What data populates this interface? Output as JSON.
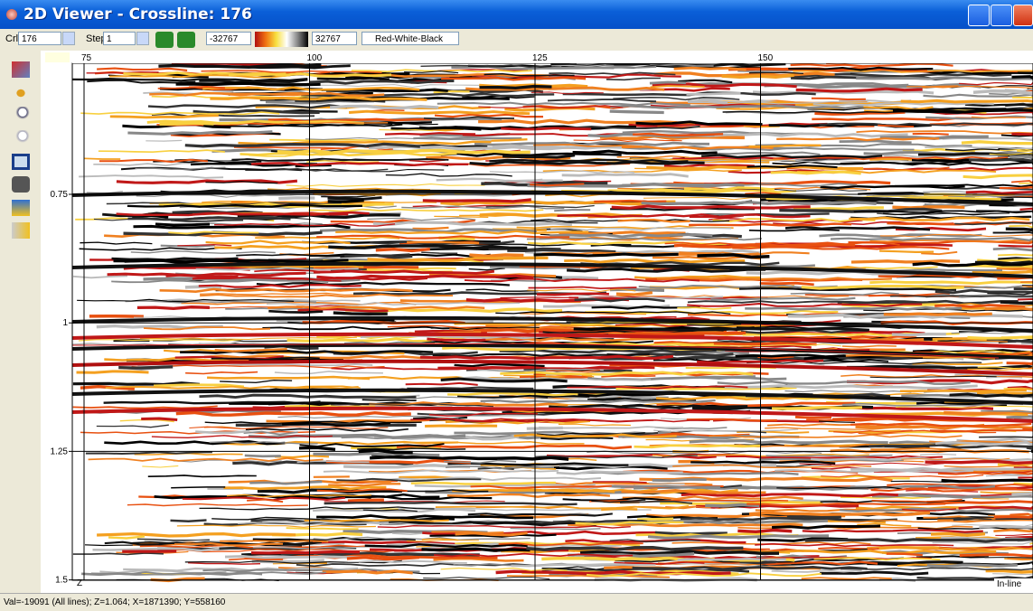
{
  "window": {
    "title": "2D Viewer - Crossline: 176"
  },
  "toolbar": {
    "crl_label": "Crl",
    "crl_value": "176",
    "step_label": "Step",
    "step_value": "1",
    "min_value": "-32767",
    "max_value": "32767",
    "colortable": "Red-White-Black"
  },
  "axes": {
    "x_ticks": [
      "75",
      "100",
      "125",
      "150"
    ],
    "y_ticks": [
      "0.75",
      "1",
      "1.25",
      "1.5"
    ],
    "x_name": "In-line",
    "y_name": "Z"
  },
  "status_bar": {
    "text": "Val=-19091 (All lines); Z=1.064; X=1871390; Y=558160"
  }
}
